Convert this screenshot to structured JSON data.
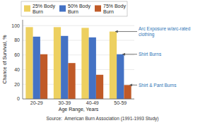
{
  "chart_data": {
    "type": "bar",
    "categories": [
      "20-29",
      "30-39",
      "40-49",
      "50-59"
    ],
    "series": [
      {
        "name": "25% Body\nBurn",
        "color": "#EDD060",
        "values": [
          98,
          98,
          97,
          92
        ]
      },
      {
        "name": "50% Body\nBurn",
        "color": "#4472C4",
        "values": [
          85,
          86,
          84,
          61
        ]
      },
      {
        "name": "75% Body\nBurn",
        "color": "#C05A28",
        "values": [
          61,
          49,
          33,
          19
        ]
      }
    ],
    "ylabel": "Chance of Survival, %",
    "xlabel": "Age Range, Years",
    "ylim": [
      0,
      108
    ],
    "yticks": [
      0,
      20,
      40,
      60,
      80,
      100
    ],
    "annotations": [
      "Arc Exposure w/arc-rated\nclothing",
      "Shirt Burns",
      "Shirt & Pant Burns"
    ],
    "source": "Source:  American Burn Association (1991-1993 Study)",
    "grid": true,
    "legend": "upper left"
  }
}
